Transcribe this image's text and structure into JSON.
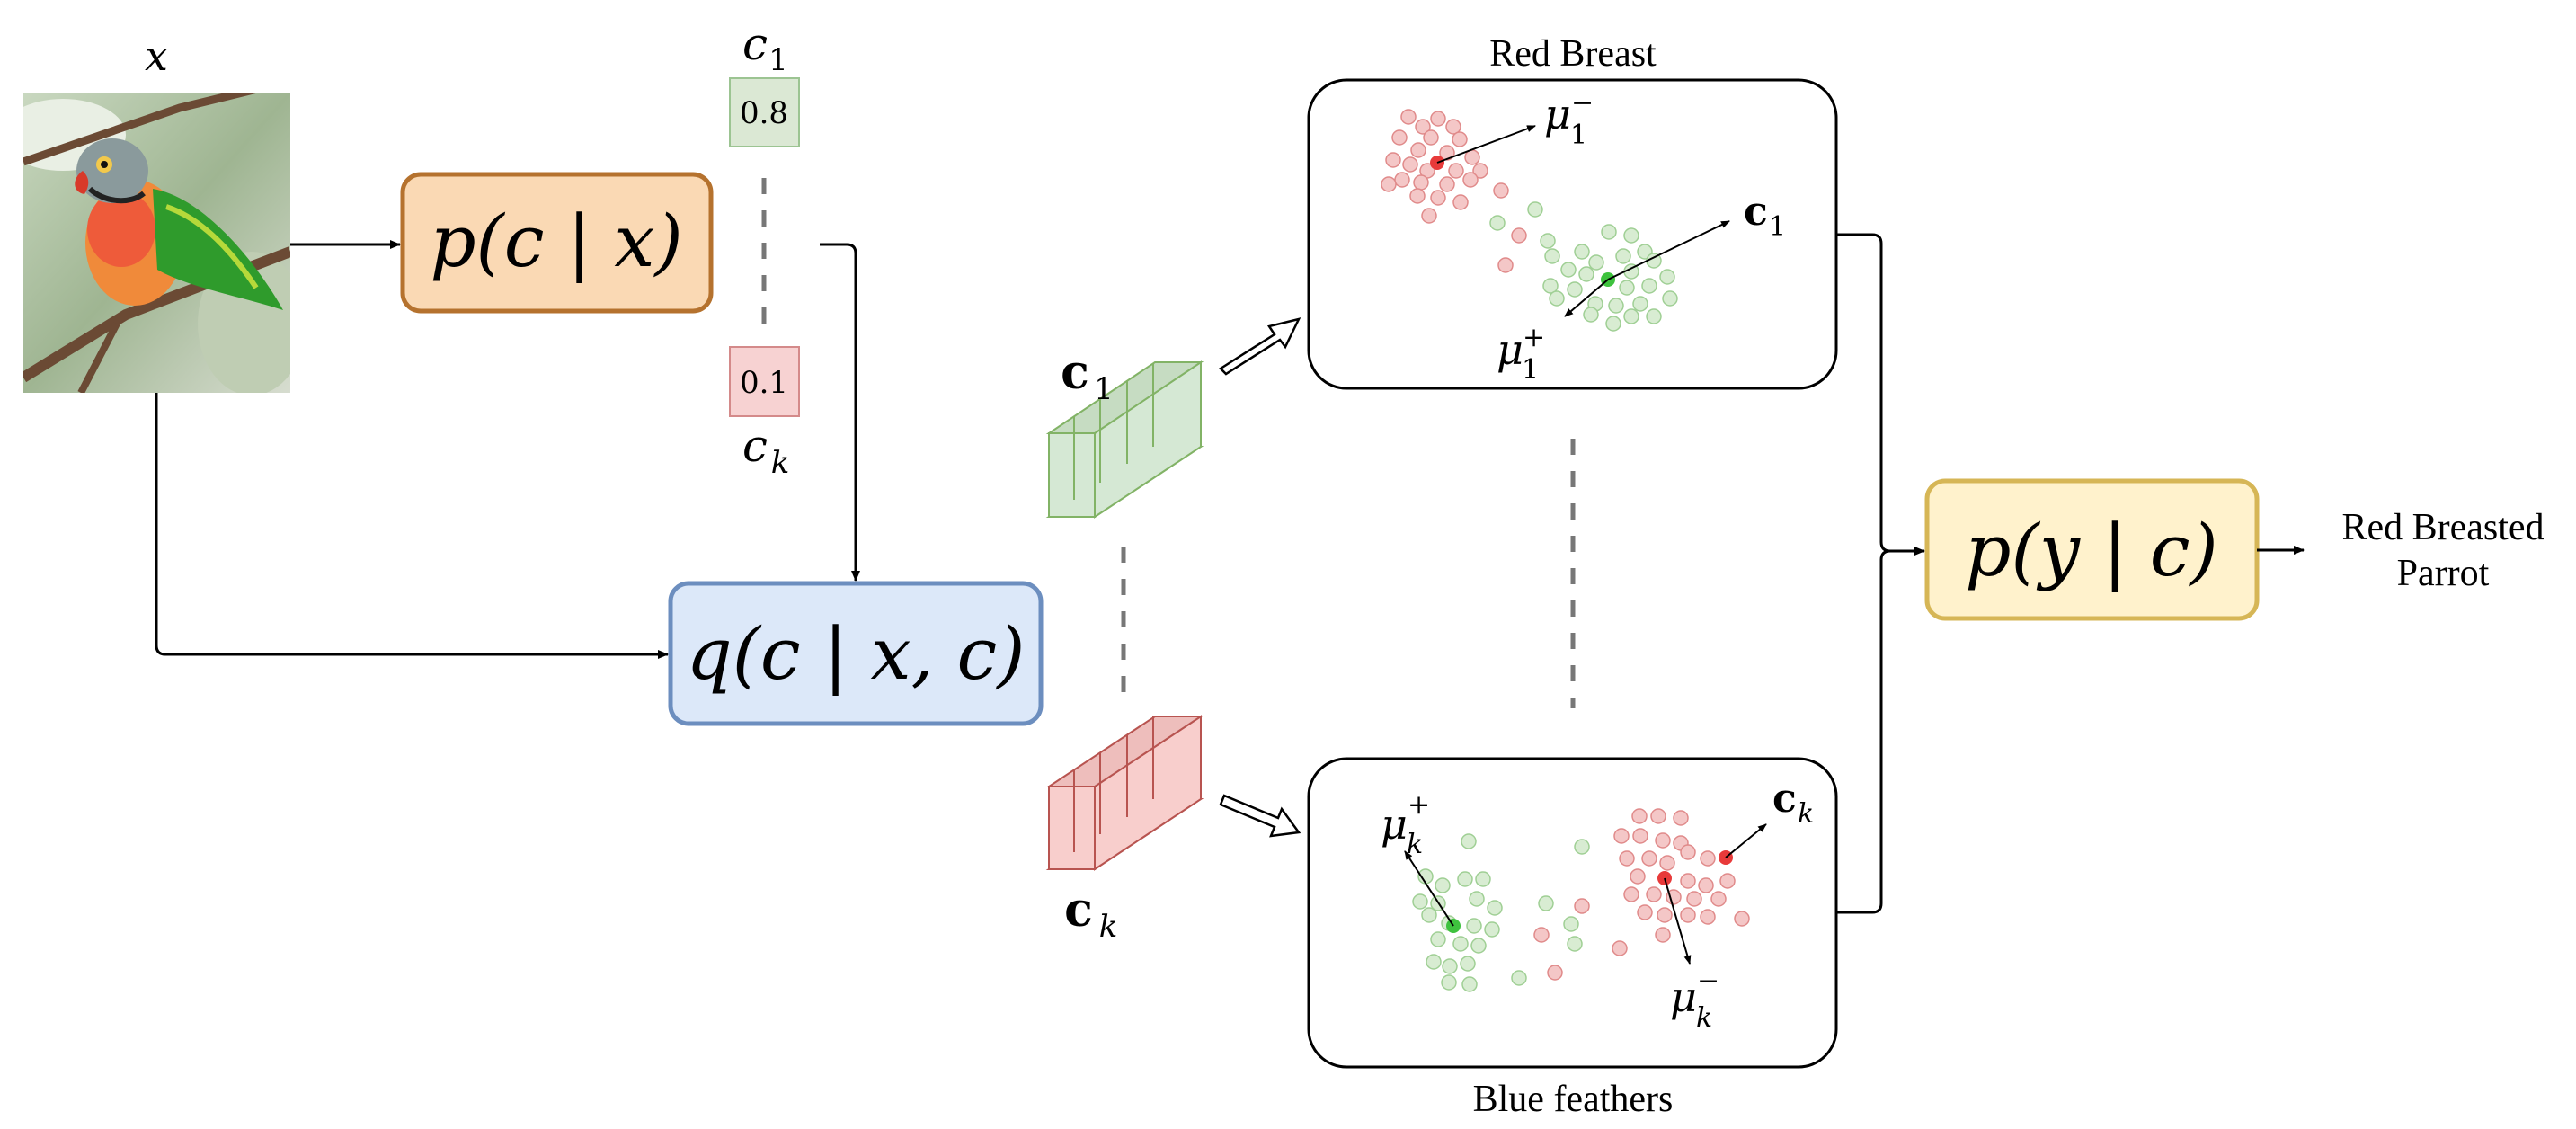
{
  "input": {
    "symbol": "x"
  },
  "model_boxes": {
    "concept_predictor": {
      "label": "p(c | x)",
      "fill": "#fad9b4",
      "stroke": "#b5722e"
    },
    "concept_encoder": {
      "label": "q(c | x, c)",
      "fill": "#dce8f9",
      "stroke": "#6c8ebf"
    },
    "task_predictor": {
      "label": "p(y | c)",
      "fill": "#fff2cc",
      "stroke": "#d6b656"
    }
  },
  "concept_probs": [
    {
      "symbol": "c",
      "index": "1",
      "value": "0.8",
      "fill": "#dbe8d4",
      "stroke": "#9cc492"
    },
    {
      "symbol": "c",
      "index": "k",
      "value": "0.1",
      "fill": "#f7d2d2",
      "stroke": "#d48a8a"
    }
  ],
  "embeddings": [
    {
      "symbol": "c",
      "index": "1",
      "fill": "#d5e8d4",
      "stroke": "#82b366"
    },
    {
      "symbol": "c",
      "index": "k",
      "fill": "#f8cecc",
      "stroke": "#b85450"
    }
  ],
  "panels": [
    {
      "title": "Red Breast",
      "labels": {
        "mu_neg": "μ",
        "mu_neg_sub": "1",
        "mu_neg_sup": "−",
        "mu_pos": "μ",
        "mu_pos_sub": "1",
        "mu_pos_sup": "+",
        "c": "c",
        "c_sub": "1"
      }
    },
    {
      "title": "Blue feathers",
      "labels": {
        "mu_pos": "μ",
        "mu_pos_sub": "k",
        "mu_pos_sup": "+",
        "mu_neg": "μ",
        "mu_neg_sub": "k",
        "mu_neg_sup": "−",
        "c": "c",
        "c_sub": "k"
      }
    }
  ],
  "output": {
    "line1": "Red Breasted",
    "line2": "Parrot"
  },
  "colors": {
    "neg_dot": "#f4c7c7",
    "neg_dot_stroke": "#e08a8a",
    "neg_center": "#e83a3a",
    "pos_dot": "#d8ecd2",
    "pos_dot_stroke": "#9fcf94",
    "pos_center": "#3ec23e",
    "line": "#000000",
    "dash": "#777777"
  }
}
